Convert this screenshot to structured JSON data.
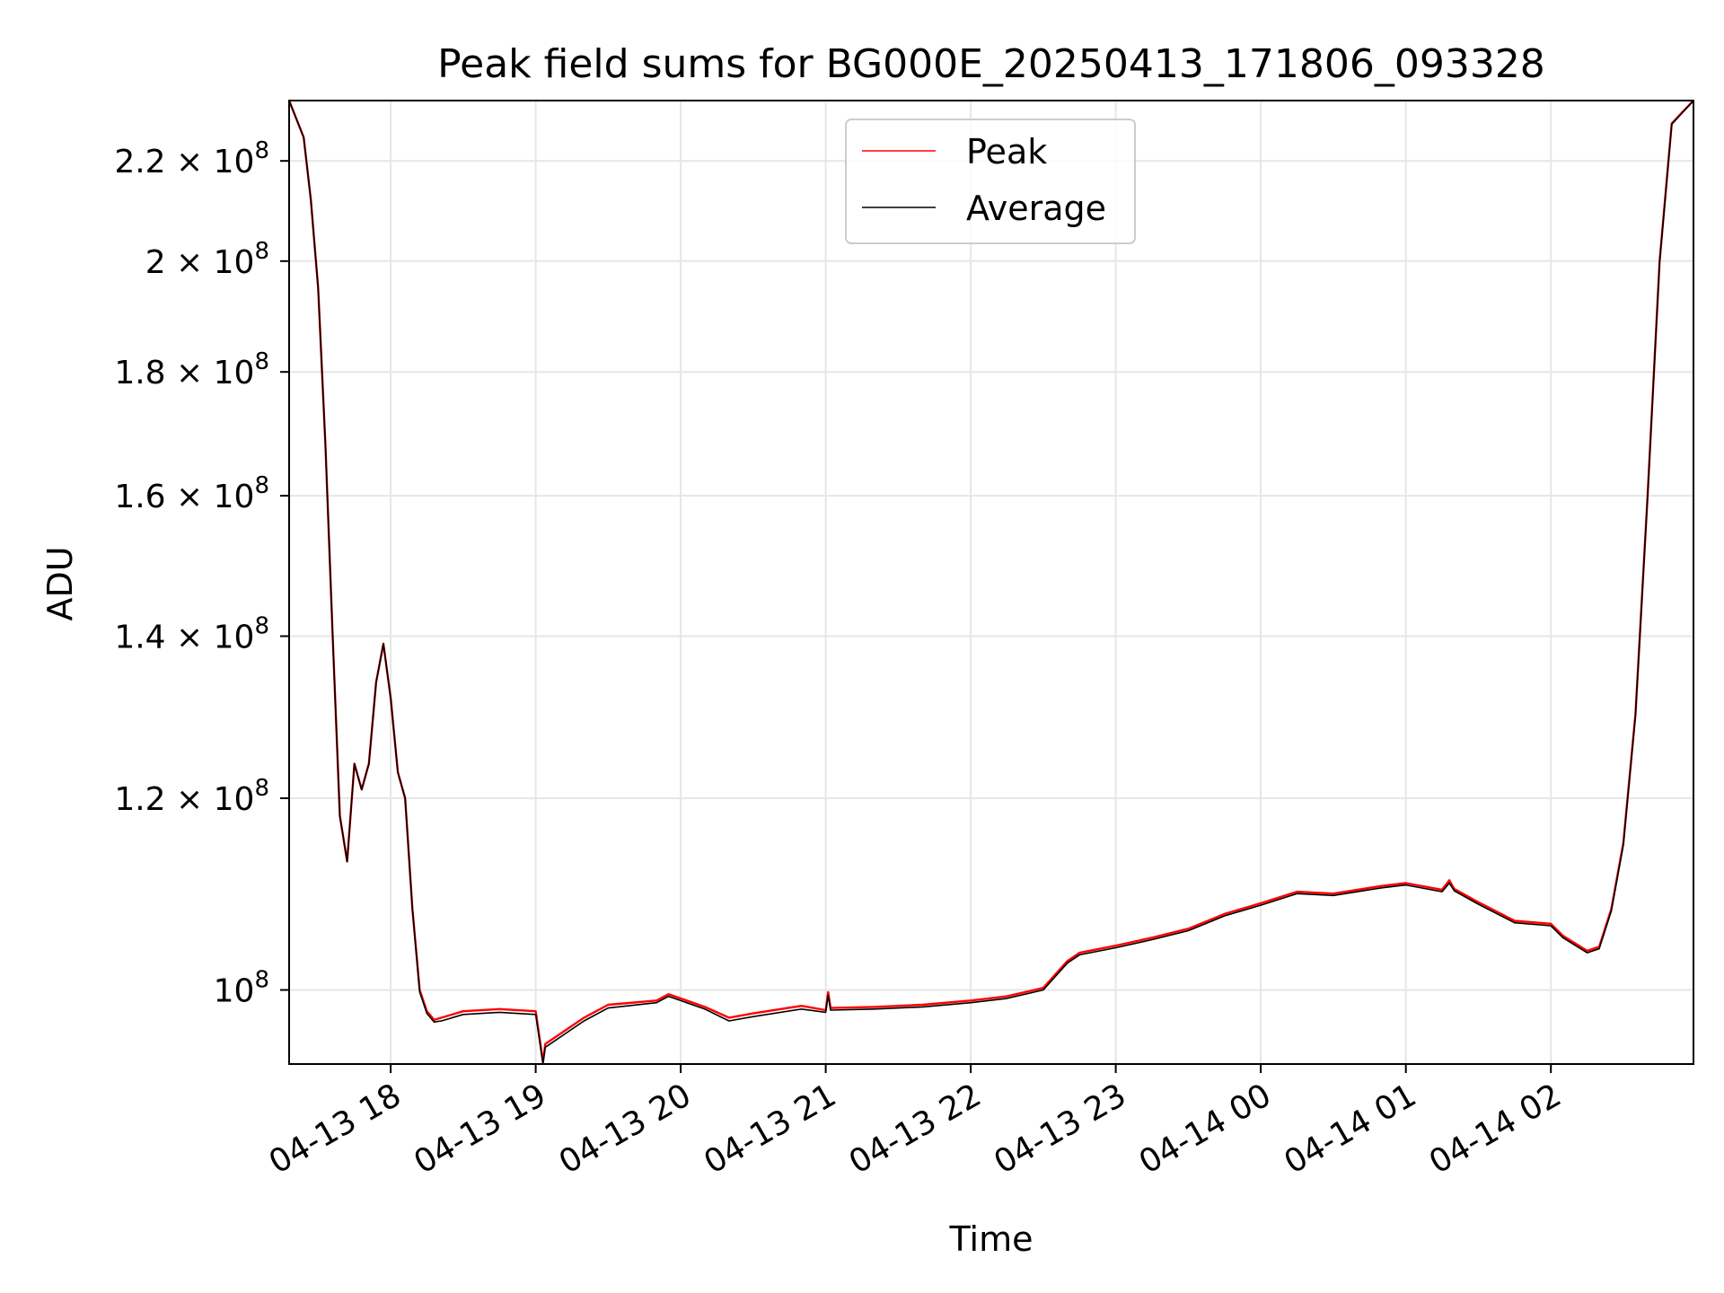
{
  "chart_data": {
    "type": "line",
    "title": "Peak field sums for BG000E_20250413_171806_093328",
    "xlabel": "Time",
    "ylabel": "ADU",
    "y_scale": "log",
    "grid": true,
    "legend_position": "top-center",
    "xlim": [
      "2025-04-13 17:18",
      "2025-04-14 02:59"
    ],
    "ylim": [
      93200000,
      233000000
    ],
    "x_ticks": [
      {
        "value": "2025-04-13 18:00",
        "label": "04-13 18"
      },
      {
        "value": "2025-04-13 19:00",
        "label": "04-13 19"
      },
      {
        "value": "2025-04-13 20:00",
        "label": "04-13 20"
      },
      {
        "value": "2025-04-13 21:00",
        "label": "04-13 21"
      },
      {
        "value": "2025-04-13 22:00",
        "label": "04-13 22"
      },
      {
        "value": "2025-04-13 23:00",
        "label": "04-13 23"
      },
      {
        "value": "2025-04-14 00:00",
        "label": "04-14 00"
      },
      {
        "value": "2025-04-14 01:00",
        "label": "04-14 01"
      },
      {
        "value": "2025-04-14 02:00",
        "label": "04-14 02"
      }
    ],
    "y_ticks": [
      {
        "value": 100000000,
        "mantissa": "",
        "exp": "8"
      },
      {
        "value": 120000000,
        "mantissa": "1.2 × ",
        "exp": "8"
      },
      {
        "value": 140000000,
        "mantissa": "1.4 × ",
        "exp": "8"
      },
      {
        "value": 160000000,
        "mantissa": "1.6 × ",
        "exp": "8"
      },
      {
        "value": 180000000,
        "mantissa": "1.8 × ",
        "exp": "8"
      },
      {
        "value": 200000000,
        "mantissa": "2 × ",
        "exp": "8"
      },
      {
        "value": 220000000,
        "mantissa": "2.2 × ",
        "exp": "8"
      }
    ],
    "series": [
      {
        "name": "Peak",
        "color": "#ff0000",
        "x": [
          "2025-04-13 17:18",
          "2025-04-13 17:24",
          "2025-04-13 17:27",
          "2025-04-13 17:30",
          "2025-04-13 17:33",
          "2025-04-13 17:36",
          "2025-04-13 17:39",
          "2025-04-13 17:42",
          "2025-04-13 17:45",
          "2025-04-13 17:48",
          "2025-04-13 17:51",
          "2025-04-13 17:54",
          "2025-04-13 17:57",
          "2025-04-13 18:00",
          "2025-04-13 18:03",
          "2025-04-13 18:06",
          "2025-04-13 18:09",
          "2025-04-13 18:12",
          "2025-04-13 18:15",
          "2025-04-13 18:18",
          "2025-04-13 18:21",
          "2025-04-13 18:24",
          "2025-04-13 18:27",
          "2025-04-13 18:30",
          "2025-04-13 18:45",
          "2025-04-13 19:00",
          "2025-04-13 19:03",
          "2025-04-13 19:04",
          "2025-04-13 19:20",
          "2025-04-13 19:30",
          "2025-04-13 19:50",
          "2025-04-13 19:55",
          "2025-04-13 20:10",
          "2025-04-13 20:20",
          "2025-04-13 20:30",
          "2025-04-13 20:50",
          "2025-04-13 21:00",
          "2025-04-13 21:01",
          "2025-04-13 21:02",
          "2025-04-13 21:20",
          "2025-04-13 21:40",
          "2025-04-13 22:00",
          "2025-04-13 22:15",
          "2025-04-13 22:30",
          "2025-04-13 22:40",
          "2025-04-13 22:45",
          "2025-04-13 23:00",
          "2025-04-13 23:15",
          "2025-04-13 23:30",
          "2025-04-13 23:45",
          "2025-04-14 00:00",
          "2025-04-14 00:15",
          "2025-04-14 00:30",
          "2025-04-14 00:50",
          "2025-04-14 01:00",
          "2025-04-14 01:15",
          "2025-04-14 01:18",
          "2025-04-14 01:20",
          "2025-04-14 01:30",
          "2025-04-14 01:45",
          "2025-04-14 02:00",
          "2025-04-14 02:05",
          "2025-04-14 02:15",
          "2025-04-14 02:20",
          "2025-04-14 02:25",
          "2025-04-14 02:30",
          "2025-04-14 02:35",
          "2025-04-14 02:40",
          "2025-04-14 02:45",
          "2025-04-14 02:50",
          "2025-04-14 02:59"
        ],
        "y": [
          233000000,
          225000000,
          212000000,
          195000000,
          168000000,
          140000000,
          118000000,
          113000000,
          124000000,
          121000000,
          124000000,
          134000000,
          139000000,
          132000000,
          123000000,
          120000000,
          108000000,
          100000000,
          98000000,
          97200000,
          97400000,
          97600000,
          97800000,
          98000000,
          98200000,
          98000000,
          93400000,
          95000000,
          97400000,
          98600000,
          99000000,
          99600000,
          98400000,
          97400000,
          97800000,
          98500000,
          98100000,
          99800000,
          98300000,
          98400000,
          98600000,
          99000000,
          99400000,
          100200000,
          102800000,
          103600000,
          104300000,
          105100000,
          106000000,
          107500000,
          108600000,
          109800000,
          109600000,
          110400000,
          110700000,
          110000000,
          111000000,
          110100000,
          108700000,
          106800000,
          106500000,
          105300000,
          103800000,
          104200000,
          108000000,
          115000000,
          130000000,
          160000000,
          200000000,
          228000000,
          233000000
        ]
      },
      {
        "name": "Average",
        "color": "#000000",
        "x": [
          "2025-04-13 17:18",
          "2025-04-13 17:24",
          "2025-04-13 17:27",
          "2025-04-13 17:30",
          "2025-04-13 17:33",
          "2025-04-13 17:36",
          "2025-04-13 17:39",
          "2025-04-13 17:42",
          "2025-04-13 17:45",
          "2025-04-13 17:48",
          "2025-04-13 17:51",
          "2025-04-13 17:54",
          "2025-04-13 17:57",
          "2025-04-13 18:00",
          "2025-04-13 18:03",
          "2025-04-13 18:06",
          "2025-04-13 18:09",
          "2025-04-13 18:12",
          "2025-04-13 18:15",
          "2025-04-13 18:18",
          "2025-04-13 18:21",
          "2025-04-13 18:24",
          "2025-04-13 18:27",
          "2025-04-13 18:30",
          "2025-04-13 18:45",
          "2025-04-13 19:00",
          "2025-04-13 19:03",
          "2025-04-13 19:04",
          "2025-04-13 19:20",
          "2025-04-13 19:30",
          "2025-04-13 19:50",
          "2025-04-13 19:55",
          "2025-04-13 20:10",
          "2025-04-13 20:20",
          "2025-04-13 20:30",
          "2025-04-13 20:50",
          "2025-04-13 21:00",
          "2025-04-13 21:01",
          "2025-04-13 21:02",
          "2025-04-13 21:20",
          "2025-04-13 21:40",
          "2025-04-13 22:00",
          "2025-04-13 22:15",
          "2025-04-13 22:30",
          "2025-04-13 22:40",
          "2025-04-13 22:45",
          "2025-04-13 23:00",
          "2025-04-13 23:15",
          "2025-04-13 23:30",
          "2025-04-13 23:45",
          "2025-04-14 00:00",
          "2025-04-14 00:15",
          "2025-04-14 00:30",
          "2025-04-14 00:50",
          "2025-04-14 01:00",
          "2025-04-14 01:15",
          "2025-04-14 01:18",
          "2025-04-14 01:20",
          "2025-04-14 01:30",
          "2025-04-14 01:45",
          "2025-04-14 02:00",
          "2025-04-14 02:05",
          "2025-04-14 02:15",
          "2025-04-14 02:20",
          "2025-04-14 02:25",
          "2025-04-14 02:30",
          "2025-04-14 02:35",
          "2025-04-14 02:40",
          "2025-04-14 02:45",
          "2025-04-14 02:50",
          "2025-04-14 02:59"
        ],
        "y": [
          233000000,
          225000000,
          212000000,
          195000000,
          168000000,
          140000000,
          118000000,
          113000000,
          124000000,
          121000000,
          124000000,
          134000000,
          139000000,
          132000000,
          123000000,
          120000000,
          108000000,
          99800000,
          97800000,
          97000000,
          97100000,
          97300000,
          97500000,
          97700000,
          97900000,
          97700000,
          93200000,
          94700000,
          97100000,
          98300000,
          98800000,
          99400000,
          98200000,
          97100000,
          97500000,
          98200000,
          97900000,
          99500000,
          98100000,
          98200000,
          98400000,
          98800000,
          99200000,
          100000000,
          102600000,
          103400000,
          104100000,
          104900000,
          105800000,
          107300000,
          108400000,
          109600000,
          109400000,
          110200000,
          110500000,
          109800000,
          110700000,
          109900000,
          108500000,
          106600000,
          106300000,
          105100000,
          103600000,
          104000000,
          107800000,
          114800000,
          129800000,
          159800000,
          199800000,
          227800000,
          233000000
        ]
      }
    ]
  }
}
